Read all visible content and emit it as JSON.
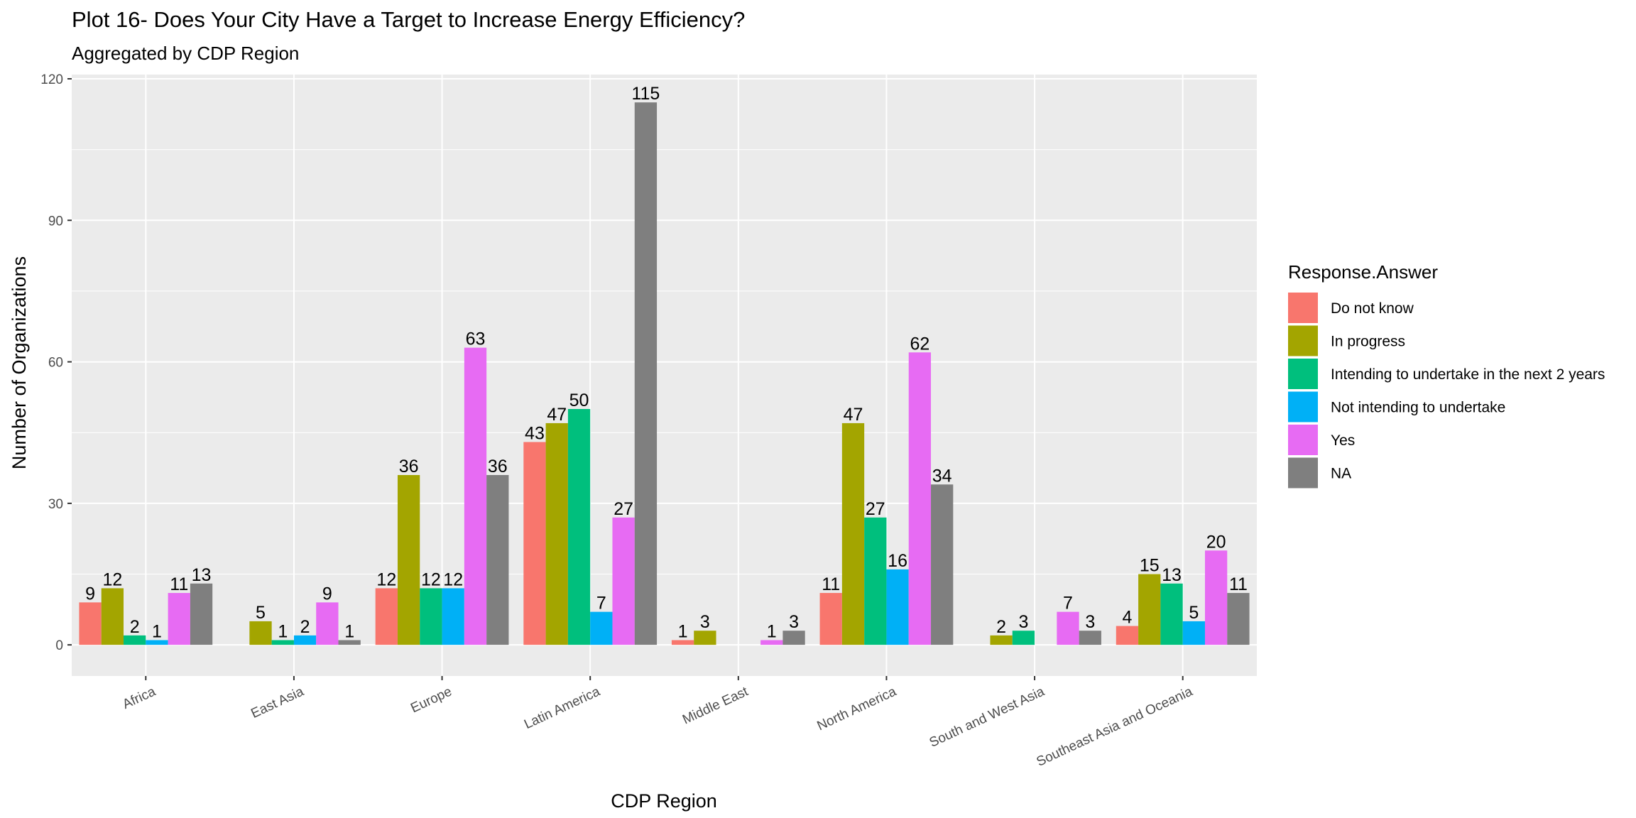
{
  "chart_data": {
    "type": "bar",
    "title": "Plot 16- Does Your City Have a Target to Increase Energy Efficiency?",
    "subtitle": "Aggregated by CDP Region",
    "xlabel": "CDP Region",
    "ylabel": "Number of Organizations",
    "ylim": [
      -6.6,
      120.9
    ],
    "yticks": [
      0,
      30,
      60,
      90,
      120
    ],
    "grid": true,
    "legend_position": "right",
    "legend_title": "Response.Answer",
    "categories": [
      "Africa",
      "East Asia",
      "Europe",
      "Latin America",
      "Middle East",
      "North America",
      "South and West Asia",
      "Southeast Asia and Oceania"
    ],
    "series": [
      {
        "name": "Do not know",
        "color": "#F8766D",
        "values": [
          9,
          null,
          12,
          43,
          1,
          11,
          null,
          4
        ]
      },
      {
        "name": "In progress",
        "color": "#A3A500",
        "values": [
          12,
          5,
          36,
          47,
          3,
          47,
          2,
          15
        ]
      },
      {
        "name": "Intending to undertake in the next 2 years",
        "color": "#00BF7D",
        "values": [
          2,
          1,
          12,
          50,
          null,
          27,
          3,
          13
        ]
      },
      {
        "name": "Not intending to undertake",
        "color": "#00B0F6",
        "values": [
          1,
          2,
          12,
          7,
          null,
          16,
          null,
          5
        ]
      },
      {
        "name": "Yes",
        "color": "#E76BF3",
        "values": [
          11,
          9,
          63,
          27,
          1,
          62,
          7,
          20
        ]
      },
      {
        "name": "NA",
        "color": "#7F7F7F",
        "values": [
          13,
          1,
          36,
          115,
          3,
          34,
          3,
          11
        ]
      }
    ]
  }
}
